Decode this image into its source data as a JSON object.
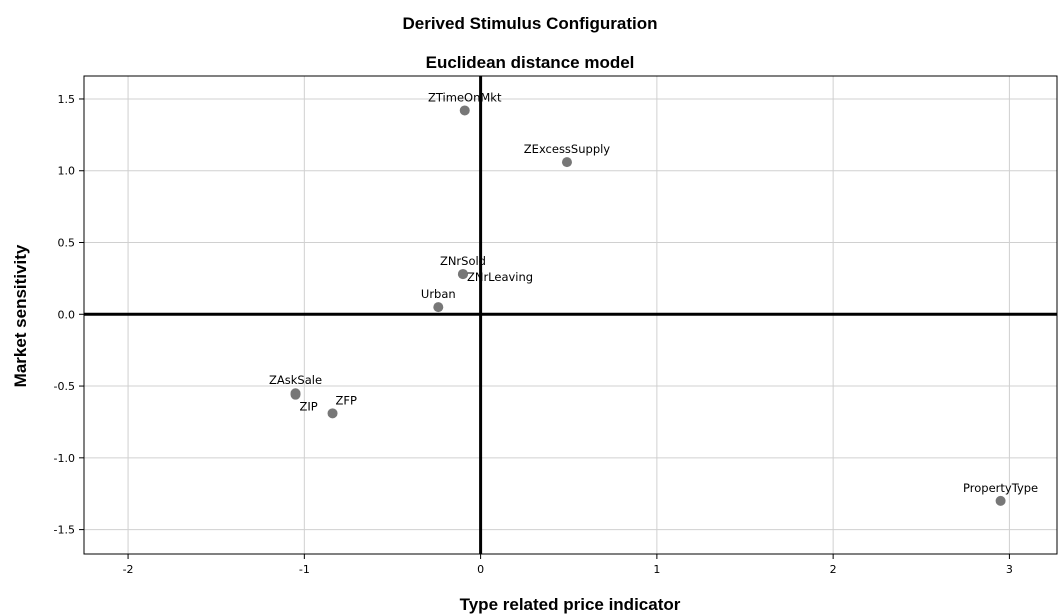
{
  "chart_data": {
    "type": "scatter",
    "title": "Derived Stimulus Configuration",
    "subtitle": "Euclidean distance model",
    "xlabel": "Type related price indicator",
    "ylabel": "Market sensitivity",
    "xlim": [
      -2.25,
      3.27
    ],
    "ylim": [
      -1.67,
      1.66
    ],
    "xticks": [
      -2,
      -1,
      0,
      1,
      2,
      3
    ],
    "xtick_labels": [
      "-2",
      "-1",
      "0",
      "1",
      "2",
      "3"
    ],
    "yticks": [
      -1.5,
      -1.0,
      -0.5,
      0.0,
      0.5,
      1.0,
      1.5
    ],
    "ytick_labels": [
      "-1.5",
      "-1.0",
      "-0.5",
      "0.0",
      "0.5",
      "1.0",
      "1.5"
    ],
    "grid": true,
    "reference_lines": {
      "x": 0,
      "y": 0
    },
    "point_color": "#777777",
    "points": [
      {
        "label": "ZTimeOnMkt",
        "x": -0.09,
        "y": 1.42,
        "label_pos": "above"
      },
      {
        "label": "ZExcessSupply",
        "x": 0.49,
        "y": 1.06,
        "label_pos": "above"
      },
      {
        "label": "ZNrSold",
        "x": -0.1,
        "y": 0.28,
        "label_pos": "above"
      },
      {
        "label": "ZNrLeaving",
        "x": -0.1,
        "y": 0.28,
        "label_pos": "right"
      },
      {
        "label": "Urban",
        "x": -0.24,
        "y": 0.05,
        "label_pos": "above"
      },
      {
        "label": "ZAskSale",
        "x": -1.05,
        "y": -0.55,
        "label_pos": "above"
      },
      {
        "label": "ZIP",
        "x": -1.05,
        "y": -0.56,
        "label_pos": "below"
      },
      {
        "label": "ZFP",
        "x": -0.84,
        "y": -0.69,
        "label_pos": "above-right"
      },
      {
        "label": "PropertyType",
        "x": 2.95,
        "y": -1.3,
        "label_pos": "above"
      }
    ]
  }
}
